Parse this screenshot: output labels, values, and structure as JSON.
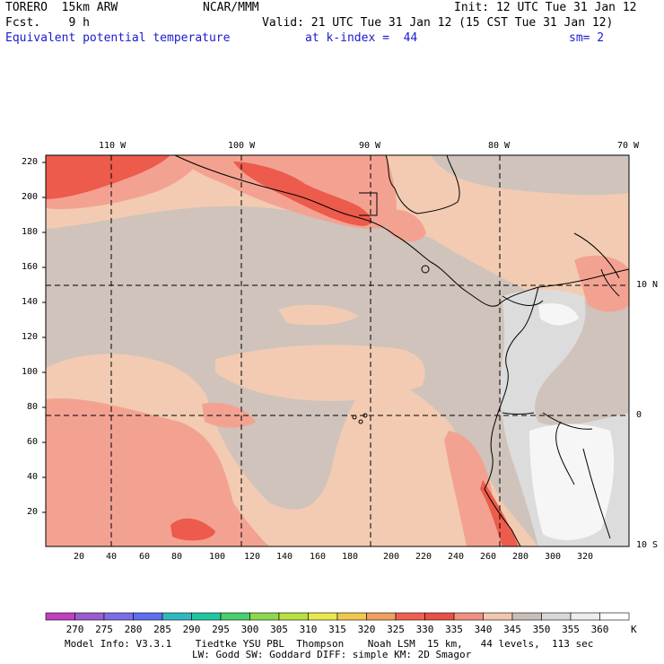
{
  "header": {
    "model": "TORERO  15km ARW",
    "center": "NCAR/MMM",
    "init": "Init: 12 UTC Tue 31 Jan 12",
    "fcst": "Fcst.    9 h",
    "valid": "Valid: 21 UTC Tue 31 Jan 12 (15 CST Tue 31 Jan 12)",
    "field": "Equivalent potential temperature",
    "level": "at k-index =  44",
    "smooth": "sm= 2"
  },
  "map": {
    "lon_labels": [
      "110 W",
      "100 W",
      "90 W",
      "80 W",
      "70 W"
    ],
    "lat_labels": [
      "10 N",
      "0",
      "10 S"
    ],
    "y_ticks": [
      "220",
      "200",
      "180",
      "160",
      "140",
      "120",
      "100",
      "80",
      "60",
      "40",
      "20"
    ],
    "x_ticks": [
      "20",
      "40",
      "60",
      "80",
      "100",
      "120",
      "140",
      "160",
      "180",
      "200",
      "220",
      "240",
      "260",
      "280",
      "300",
      "320"
    ]
  },
  "colorbar": {
    "unit": "K",
    "levels": [
      "270",
      "275",
      "280",
      "285",
      "290",
      "295",
      "300",
      "305",
      "310",
      "315",
      "320",
      "325",
      "330",
      "335",
      "340",
      "345",
      "350",
      "355",
      "360"
    ],
    "colors": [
      "#c040c0",
      "#9a5cd0",
      "#7a6ee8",
      "#5e6ef0",
      "#30b8c0",
      "#20c8a0",
      "#48d070",
      "#8ed850",
      "#b8e040",
      "#e8e850",
      "#f0c850",
      "#f0a060",
      "#f06050",
      "#e85048",
      "#f09080",
      "#f0c8b0",
      "#c8c0b8",
      "#d8d8d8",
      "#eeeeee",
      "#ffffff"
    ]
  },
  "footer": {
    "line1": "Model Info: V3.3.1    Tiedtke YSU PBL  Thompson    Noah LSM  15 km,   44 levels,  113 sec",
    "line2": "LW: Godd SW: Goddard DIFF: simple KM: 2D Smagor"
  }
}
